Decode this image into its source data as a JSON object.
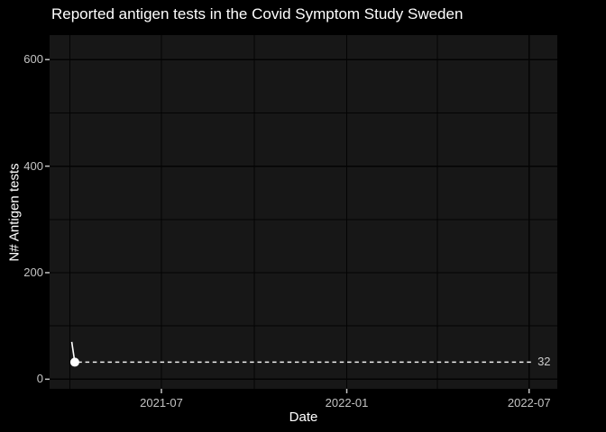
{
  "colors": {
    "background": "#000000",
    "panel": "#171717",
    "grid": "#030303",
    "tick": "#c4c4c4",
    "tick_label": "#c4c4c4",
    "text": "#ffffff",
    "data": "#ffffff",
    "annotation_line": "#f0f0f0",
    "annotation_text": "#cccccc"
  },
  "chart_data": {
    "type": "line",
    "title": "Reported antigen tests in the Covid Symptom Study Sweden",
    "xlabel": "Date",
    "ylabel": "N# Antigen tests",
    "x_ticks": [
      "2021-07",
      "2022-01",
      "2022-07"
    ],
    "x_minor_ticks": [
      "2021-04",
      "2021-10",
      "2022-04"
    ],
    "y_ticks": [
      0,
      200,
      400,
      600
    ],
    "y_minor_ticks": [
      100,
      300,
      500
    ],
    "x_domain": [
      "2021-03-12",
      "2022-07-29"
    ],
    "ylim": [
      -18,
      646
    ],
    "grid": true,
    "legend": "none",
    "series": [
      {
        "name": "reported antigen tests",
        "color": "#ffffff",
        "points": [
          {
            "date": "2021-04-03",
            "value": 70
          },
          {
            "date": "2021-04-06",
            "value": 32
          }
        ],
        "marker": {
          "on": "last-point",
          "shape": "circle",
          "color": "#ffffff"
        }
      }
    ],
    "annotation": {
      "type": "dashed-hline",
      "value": 32,
      "label": "32",
      "from_date": "2021-04-09",
      "to_date": "2022-07-04"
    }
  }
}
